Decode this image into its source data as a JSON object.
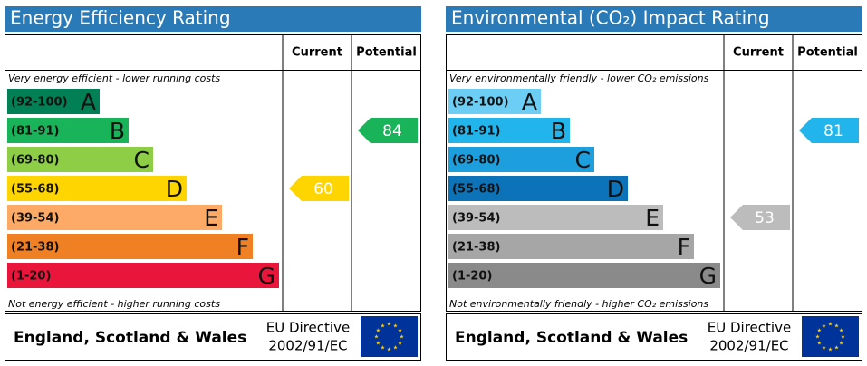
{
  "panels": [
    {
      "title": "Energy Efficiency Rating",
      "headers": {
        "current": "Current",
        "potential": "Potential"
      },
      "top_note": "Very energy efficient - lower running costs",
      "bottom_note": "Not energy efficient - higher running costs",
      "bands": [
        {
          "range": "(92-100)",
          "letter": "A",
          "color": "#008054"
        },
        {
          "range": "(81-91)",
          "letter": "B",
          "color": "#19b459"
        },
        {
          "range": "(69-80)",
          "letter": "C",
          "color": "#8dce46"
        },
        {
          "range": "(55-68)",
          "letter": "D",
          "color": "#ffd500"
        },
        {
          "range": "(39-54)",
          "letter": "E",
          "color": "#fcaa65"
        },
        {
          "range": "(21-38)",
          "letter": "F",
          "color": "#ef8023"
        },
        {
          "range": "(1-20)",
          "letter": "G",
          "color": "#e9153b"
        }
      ],
      "current": 60,
      "potential": 84,
      "footer": {
        "region": "England, Scotland & Wales",
        "directive": "EU Directive",
        "code": "2002/91/EC"
      }
    },
    {
      "title": "Environmental (CO₂) Impact Rating",
      "headers": {
        "current": "Current",
        "potential": "Potential"
      },
      "top_note": "Very environmentally friendly - lower CO₂ emissions",
      "bottom_note": "Not environmentally friendly - higher CO₂ emissions",
      "bands": [
        {
          "range": "(92-100)",
          "letter": "A",
          "color": "#6ccef5"
        },
        {
          "range": "(81-91)",
          "letter": "B",
          "color": "#22b5eb"
        },
        {
          "range": "(69-80)",
          "letter": "C",
          "color": "#1c9fdc"
        },
        {
          "range": "(55-68)",
          "letter": "D",
          "color": "#0d73b9"
        },
        {
          "range": "(39-54)",
          "letter": "E",
          "color": "#bcbcbc"
        },
        {
          "range": "(21-38)",
          "letter": "F",
          "color": "#a6a6a6"
        },
        {
          "range": "(1-20)",
          "letter": "G",
          "color": "#8a8a8a"
        }
      ],
      "current": 53,
      "potential": 81,
      "footer": {
        "region": "England, Scotland & Wales",
        "directive": "EU Directive",
        "code": "2002/91/EC"
      }
    }
  ]
}
